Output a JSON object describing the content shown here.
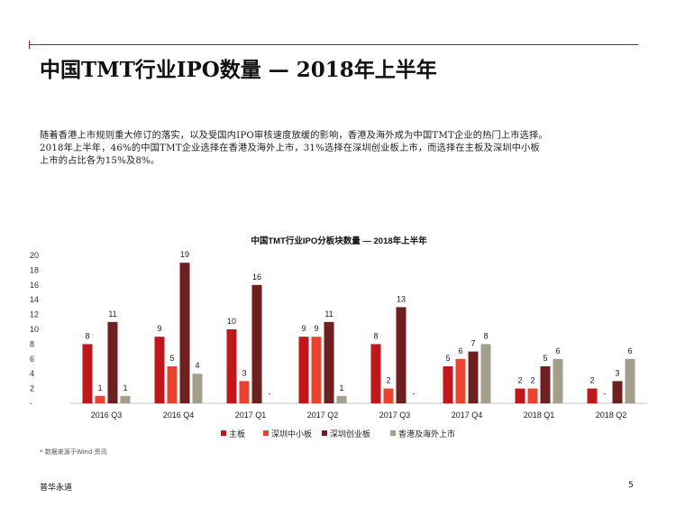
{
  "slide": {
    "title": "中国TMT行业IPO数量 — 2018年上半年",
    "intro_lines": [
      "随着香港上市规则重大修订的落实，以及受国内IPO审核速度放缓的影响，香港及海外成为中国TMT企业的热门上市选择。",
      "2018年上半年，46%的中国TMT企业选择在香港及海外上市，31%选择在深圳创业板上市，而选择在主板及深圳中小板",
      "上市的占比各为15%及8%。"
    ],
    "footnote": "* 数据来源于Wind 资讯",
    "brand": "普华永道",
    "page_number": "5"
  },
  "colors": {
    "accent_rule": "#b5161b",
    "main_board": "#c0161c",
    "sme_board": "#e8432c",
    "chinext": "#6e1f1f",
    "hk_overseas": "#a39f8c"
  },
  "chart_data": {
    "type": "bar",
    "title": "中国TMT行业IPO分板块数量 — 2018年上半年",
    "categories": [
      "2016 Q3",
      "2016 Q4",
      "2017 Q1",
      "2017 Q2",
      "2017 Q3",
      "2017 Q4",
      "2018 Q1",
      "2018 Q2"
    ],
    "series": [
      {
        "name": "主板",
        "color": "#c0161c",
        "values": [
          8,
          9,
          10,
          9,
          8,
          5,
          2,
          2
        ]
      },
      {
        "name": "深圳中小板",
        "color": "#e8432c",
        "values": [
          1,
          5,
          3,
          9,
          2,
          6,
          2,
          null
        ]
      },
      {
        "name": "深圳创业板",
        "color": "#6e1f1f",
        "values": [
          11,
          19,
          16,
          11,
          13,
          7,
          5,
          3
        ]
      },
      {
        "name": "香港及海外上市",
        "color": "#a39f8c",
        "values": [
          1,
          4,
          null,
          1,
          null,
          8,
          6,
          6
        ]
      }
    ],
    "ylim": [
      0,
      20
    ],
    "yticks": [
      "-",
      "2",
      "4",
      "6",
      "8",
      "10",
      "12",
      "14",
      "16",
      "18",
      "20"
    ],
    "zero_value_label": "-",
    "grid": false,
    "legend_position": "bottom"
  }
}
